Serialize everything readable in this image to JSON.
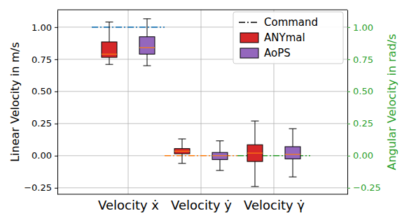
{
  "chart_data": {
    "type": "box",
    "categories": [
      "Velocity ẋ",
      "Velocity ẏ",
      "Velocity γ̇"
    ],
    "y_label": "Linear Velocity in m/s",
    "y2_label": "Angular Velocity in rad/s",
    "ylim": [
      -0.3,
      1.135
    ],
    "yticks": [
      {
        "value": -0.25,
        "label": "−0.25"
      },
      {
        "value": 0,
        "label": "0.00"
      },
      0.25,
      {
        "value": 0.5,
        "label": "0.50"
      },
      0.75,
      {
        "value": 1,
        "label": "1.00"
      }
    ],
    "y2lim": [
      -0.3,
      1.135
    ],
    "y2ticks": [
      {
        "value": -0.25,
        "label": "−0.25"
      },
      {
        "value": 0,
        "label": "0.00"
      },
      0.25,
      {
        "value": 0.5,
        "label": "0.50"
      },
      0.75,
      {
        "value": 1,
        "label": "1.00"
      }
    ],
    "grid": true,
    "legend": "upper right",
    "series": [
      {
        "name": "Command",
        "type": "line",
        "line_style": "dashdot",
        "color": "#000000",
        "colors": [
          "#1f77b4",
          "#ff7f0e",
          "#2ca02c"
        ],
        "values": [
          1,
          0,
          0
        ]
      },
      {
        "name": "ANYmal",
        "type": "box",
        "color": "#d62728",
        "whisker_low": [
          0.71,
          -0.06,
          -0.24
        ],
        "q1": [
          0.765,
          0.015,
          -0.045
        ],
        "median": [
          0.79,
          0.035,
          0.02
        ],
        "q3": [
          0.885,
          0.055,
          0.085
        ],
        "whisker_high": [
          1.04,
          0.13,
          0.27
        ]
      },
      {
        "name": "AoPS",
        "type": "box",
        "color": "#9467bd",
        "whisker_low": [
          0.7,
          -0.115,
          -0.165
        ],
        "q1": [
          0.79,
          -0.03,
          -0.025
        ],
        "median": [
          0.84,
          0.0,
          0.01
        ],
        "q3": [
          0.925,
          0.025,
          0.07
        ],
        "whisker_high": [
          1.065,
          0.115,
          0.21
        ]
      }
    ]
  }
}
